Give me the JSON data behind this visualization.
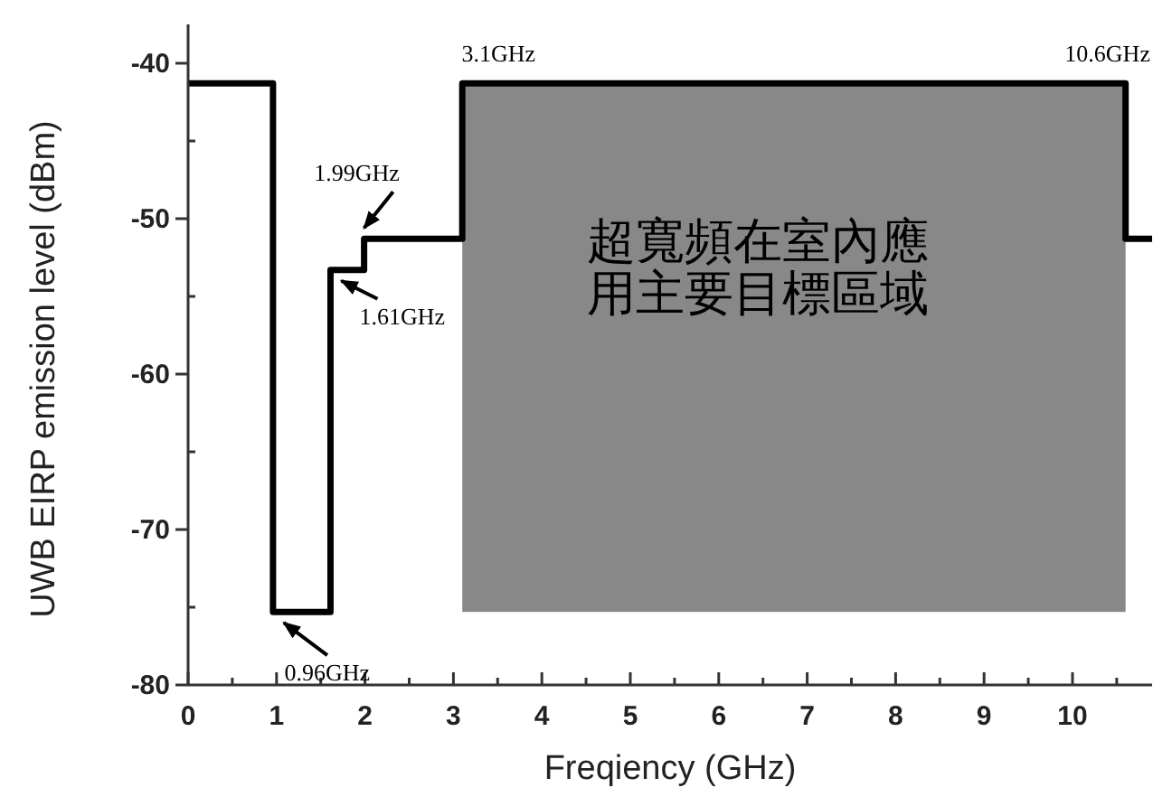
{
  "chart_data": {
    "type": "step",
    "xlabel": "Freqiency (GHz)",
    "ylabel": "UWB EIRP emission level (dBm)",
    "xlim": [
      0,
      10.9
    ],
    "ylim": [
      -80,
      -37.5
    ],
    "xticks": [
      0,
      {
        "value": 0.5,
        "label": null
      },
      1,
      {
        "value": 1.5,
        "label": null
      },
      2,
      {
        "value": 2.5,
        "label": null
      },
      3,
      {
        "value": 3.5,
        "label": null
      },
      4,
      {
        "value": 4.5,
        "label": null
      },
      5,
      {
        "value": 5.5,
        "label": null
      },
      6,
      {
        "value": 6.5,
        "label": null
      },
      7,
      {
        "value": 7.5,
        "label": null
      },
      8,
      {
        "value": 8.5,
        "label": null
      },
      9,
      {
        "value": 9.5,
        "label": null
      },
      10,
      {
        "value": 10.5,
        "label": null
      }
    ],
    "yticks": [
      -80,
      {
        "value": -75,
        "label": null
      },
      -70,
      {
        "value": -65,
        "label": null
      },
      -60,
      {
        "value": -55,
        "label": null
      },
      -50,
      {
        "value": -45,
        "label": null
      },
      -40
    ],
    "series": [
      {
        "color": "#000000",
        "x": [
          0,
          0.96,
          1.61,
          1.99,
          3.1,
          10.6,
          10.9
        ],
        "values": [
          -41.3,
          -75.3,
          -53.3,
          -51.3,
          -41.3,
          -51.3,
          -51.3
        ]
      }
    ],
    "annotations": [
      {
        "text": "0.96GHz",
        "x": 0.96,
        "y": -75.3
      },
      {
        "text": "1.61GHz",
        "x": 1.61,
        "y": -53.3
      },
      {
        "text": "1.99GHz",
        "x": 1.99,
        "y": -51.3
      },
      {
        "text": "3.1GHz",
        "x": 3.1,
        "y": -41.3
      },
      {
        "text": "10.6GHz",
        "x": 10.6,
        "y": -41.3
      }
    ],
    "bands": [
      {
        "axis": "x",
        "from": 3.1,
        "to": 10.6,
        "color": "#888888",
        "label": "超寬頻在室內應用主要目標區域"
      }
    ]
  }
}
